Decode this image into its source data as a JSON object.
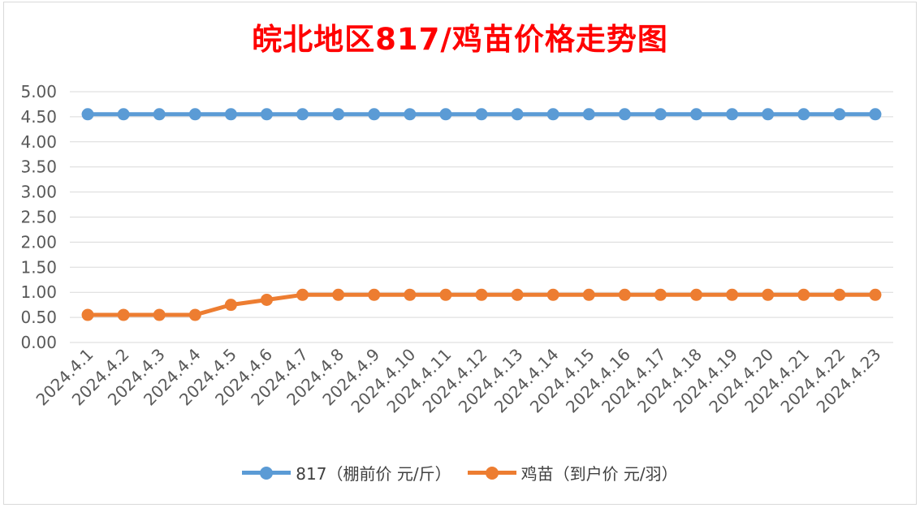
{
  "chart_data": {
    "type": "line",
    "title": "皖北地区817/鸡苗价格走势图",
    "categories": [
      "2024.4.1",
      "2024.4.2",
      "2024.4.3",
      "2024.4.4",
      "2024.4.5",
      "2024.4.6",
      "2024.4.7",
      "2024.4.8",
      "2024.4.9",
      "2024.4.10",
      "2024.4.11",
      "2024.4.12",
      "2024.4.13",
      "2024.4.14",
      "2024.4.15",
      "2024.4.16",
      "2024.4.17",
      "2024.4.18",
      "2024.4.19",
      "2024.4.20",
      "2024.4.21",
      "2024.4.22",
      "2024.4.23"
    ],
    "series": [
      {
        "name": "817（棚前价 元/斤）",
        "color": "#5b9bd5",
        "values": [
          4.55,
          4.55,
          4.55,
          4.55,
          4.55,
          4.55,
          4.55,
          4.55,
          4.55,
          4.55,
          4.55,
          4.55,
          4.55,
          4.55,
          4.55,
          4.55,
          4.55,
          4.55,
          4.55,
          4.55,
          4.55,
          4.55,
          4.55
        ]
      },
      {
        "name": "鸡苗（到户价 元/羽）",
        "color": "#ed7d31",
        "values": [
          0.55,
          0.55,
          0.55,
          0.55,
          0.75,
          0.85,
          0.95,
          0.95,
          0.95,
          0.95,
          0.95,
          0.95,
          0.95,
          0.95,
          0.95,
          0.95,
          0.95,
          0.95,
          0.95,
          0.95,
          0.95,
          0.95,
          0.95
        ]
      }
    ],
    "yticks": [
      "0.00",
      "0.50",
      "1.00",
      "1.50",
      "2.00",
      "2.50",
      "3.00",
      "3.50",
      "4.00",
      "4.50",
      "5.00"
    ],
    "ylim": [
      0,
      5
    ],
    "grid": true,
    "legend": "bottom",
    "title_color": "#ff0000"
  }
}
